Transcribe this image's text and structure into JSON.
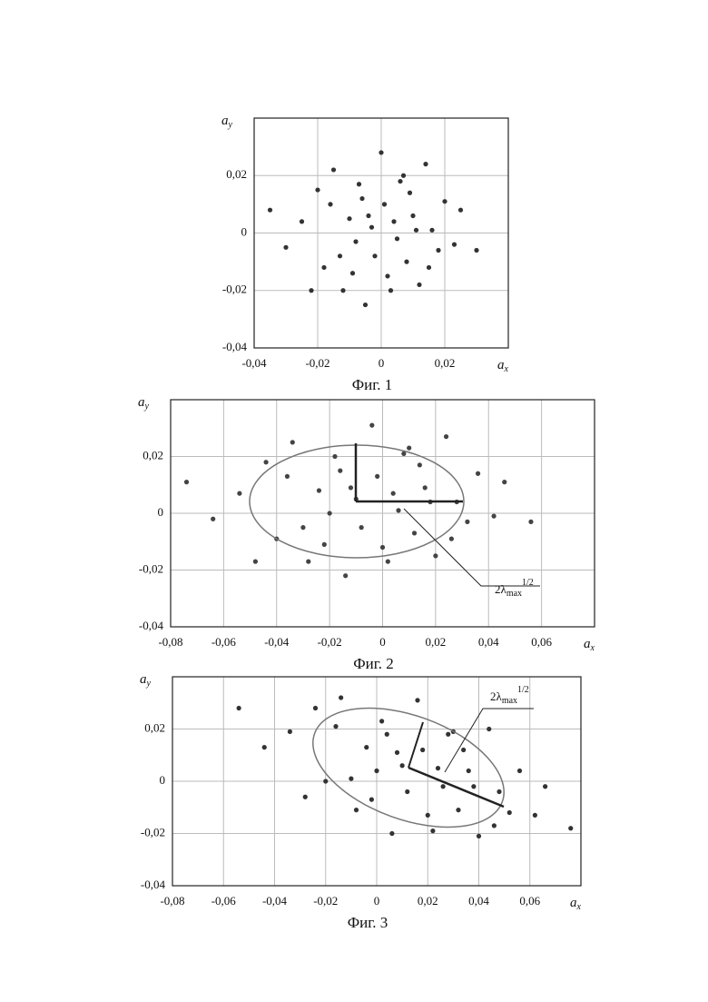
{
  "chart_data": [
    {
      "type": "scatter",
      "caption": "Фиг. 1",
      "x_label": {
        "base": "a",
        "sub": "x"
      },
      "y_label": {
        "base": "a",
        "sub": "y"
      },
      "x": [
        -0.035,
        -0.03,
        -0.025,
        -0.02,
        -0.018,
        -0.015,
        -0.012,
        -0.01,
        -0.008,
        -0.006,
        -0.005,
        -0.003,
        -0.002,
        0,
        0.001,
        0.002,
        0.004,
        0.005,
        0.006,
        0.008,
        0.01,
        0.012,
        0.014,
        0.016,
        0.018,
        0.02,
        0.023,
        0.025,
        0.03,
        -0.022,
        -0.013,
        -0.007,
        0.003,
        0.009,
        0.015,
        -0.009,
        0.007,
        -0.004,
        0.011,
        -0.016
      ],
      "values": [
        0.008,
        -0.005,
        0.004,
        0.015,
        -0.012,
        0.022,
        -0.02,
        0.005,
        -0.003,
        0.012,
        -0.025,
        0.002,
        -0.008,
        0.028,
        0.01,
        -0.015,
        0.004,
        -0.002,
        0.018,
        -0.01,
        0.006,
        -0.018,
        0.024,
        0.001,
        -0.006,
        0.011,
        -0.004,
        0.008,
        -0.006,
        -0.02,
        -0.008,
        0.017,
        -0.02,
        0.014,
        -0.012,
        -0.014,
        0.02,
        0.006,
        0.001,
        0.01
      ],
      "color": "#333333",
      "grid": true,
      "xlim": [
        -0.04,
        0.04
      ],
      "ylim": [
        -0.04,
        0.04
      ],
      "xticks": [
        {
          "value": -0.04,
          "label": "-0,04"
        },
        {
          "value": -0.02,
          "label": "-0,02"
        },
        0,
        {
          "value": 0.02,
          "label": "0,02"
        }
      ],
      "yticks": [
        {
          "value": 0.02,
          "label": "0,02"
        },
        0,
        {
          "value": -0.02,
          "label": "-0,02"
        },
        {
          "value": -0.04,
          "label": "-0,04"
        }
      ]
    },
    {
      "type": "scatter",
      "caption": "Фиг. 2",
      "x_label": {
        "base": "a",
        "sub": "x"
      },
      "y_label": {
        "base": "a",
        "sub": "y"
      },
      "annotation": {
        "base": "2λ",
        "sub": "max",
        "sup": "1/2"
      },
      "x": [
        -0.074,
        -0.064,
        -0.054,
        -0.044,
        -0.04,
        -0.034,
        -0.028,
        -0.024,
        -0.02,
        -0.016,
        -0.014,
        -0.01,
        -0.008,
        -0.004,
        -0.002,
        0,
        0.004,
        0.006,
        0.008,
        0.012,
        0.016,
        0.02,
        0.024,
        0.028,
        0.032,
        0.036,
        0.042,
        0.046,
        0.056,
        -0.048,
        -0.03,
        -0.018,
        0.002,
        0.014,
        0.026,
        -0.022,
        0.01,
        -0.012,
        0.018,
        -0.036
      ],
      "values": [
        0.011,
        -0.002,
        0.007,
        0.018,
        -0.009,
        0.025,
        -0.017,
        0.008,
        0,
        0.015,
        -0.022,
        0.005,
        -0.005,
        0.031,
        0.013,
        -0.012,
        0.007,
        0.001,
        0.021,
        -0.007,
        0.009,
        -0.015,
        0.027,
        0.004,
        -0.003,
        0.014,
        -0.001,
        0.011,
        -0.003,
        -0.017,
        -0.005,
        0.02,
        -0.017,
        0.017,
        -0.009,
        -0.011,
        0.023,
        0.009,
        0.004,
        0.013
      ],
      "color": "#444444",
      "grid": true,
      "xlim": [
        -0.08,
        0.08
      ],
      "ylim": [
        -0.04,
        0.04
      ],
      "xticks": [
        {
          "value": -0.08,
          "label": "-0,08"
        },
        {
          "value": -0.06,
          "label": "-0,06"
        },
        {
          "value": -0.04,
          "label": "-0,04"
        },
        {
          "value": -0.02,
          "label": "-0,02"
        },
        0,
        {
          "value": 0.02,
          "label": "0,02"
        },
        {
          "value": 0.04,
          "label": "0,04"
        },
        {
          "value": 0.06,
          "label": "0,06"
        }
      ],
      "yticks": [
        {
          "value": 0.02,
          "label": "0,02"
        },
        0,
        {
          "value": -0.02,
          "label": "-0,02"
        },
        {
          "value": -0.04,
          "label": "-0,04"
        }
      ]
    },
    {
      "type": "scatter",
      "caption": "Фиг. 3",
      "x_label": {
        "base": "a",
        "sub": "x"
      },
      "y_label": {
        "base": "a",
        "sub": "y"
      },
      "annotation": {
        "base": "2λ",
        "sub": "max",
        "sup": "1/2"
      },
      "x": [
        -0.054,
        -0.044,
        -0.034,
        -0.024,
        -0.02,
        -0.014,
        -0.008,
        -0.004,
        0,
        0.004,
        0.006,
        0.01,
        0.012,
        0.016,
        0.018,
        0.02,
        0.024,
        0.026,
        0.028,
        0.032,
        0.036,
        0.04,
        0.044,
        0.048,
        0.052,
        0.056,
        0.062,
        0.066,
        0.076,
        -0.028,
        -0.01,
        0.002,
        0.022,
        0.034,
        0.046,
        -0.002,
        0.03,
        0.008,
        0.038,
        -0.016
      ],
      "values": [
        0.028,
        0.013,
        0.019,
        0.028,
        0,
        0.032,
        -0.011,
        0.013,
        0.004,
        0.018,
        -0.02,
        0.006,
        -0.004,
        0.031,
        0.012,
        -0.013,
        0.005,
        -0.002,
        0.018,
        -0.011,
        0.004,
        -0.021,
        0.02,
        -0.004,
        -0.012,
        0.004,
        -0.013,
        -0.002,
        -0.018,
        -0.006,
        0.001,
        0.023,
        -0.019,
        0.012,
        -0.017,
        -0.007,
        0.019,
        0.011,
        -0.002,
        0.021
      ],
      "color": "#333333",
      "grid": true,
      "xlim": [
        -0.08,
        0.08
      ],
      "ylim": [
        -0.04,
        0.04
      ],
      "xticks": [
        {
          "value": -0.08,
          "label": "-0,08"
        },
        {
          "value": -0.06,
          "label": "-0,06"
        },
        {
          "value": -0.04,
          "label": "-0,04"
        },
        {
          "value": -0.02,
          "label": "-0,02"
        },
        0,
        {
          "value": 0.02,
          "label": "0,02"
        },
        {
          "value": 0.04,
          "label": "0,04"
        },
        {
          "value": 0.06,
          "label": "0,06"
        }
      ],
      "yticks": [
        {
          "value": 0.02,
          "label": "0,02"
        },
        0,
        {
          "value": -0.02,
          "label": "-0,02"
        },
        {
          "value": -0.04,
          "label": "-0,04"
        }
      ]
    }
  ]
}
